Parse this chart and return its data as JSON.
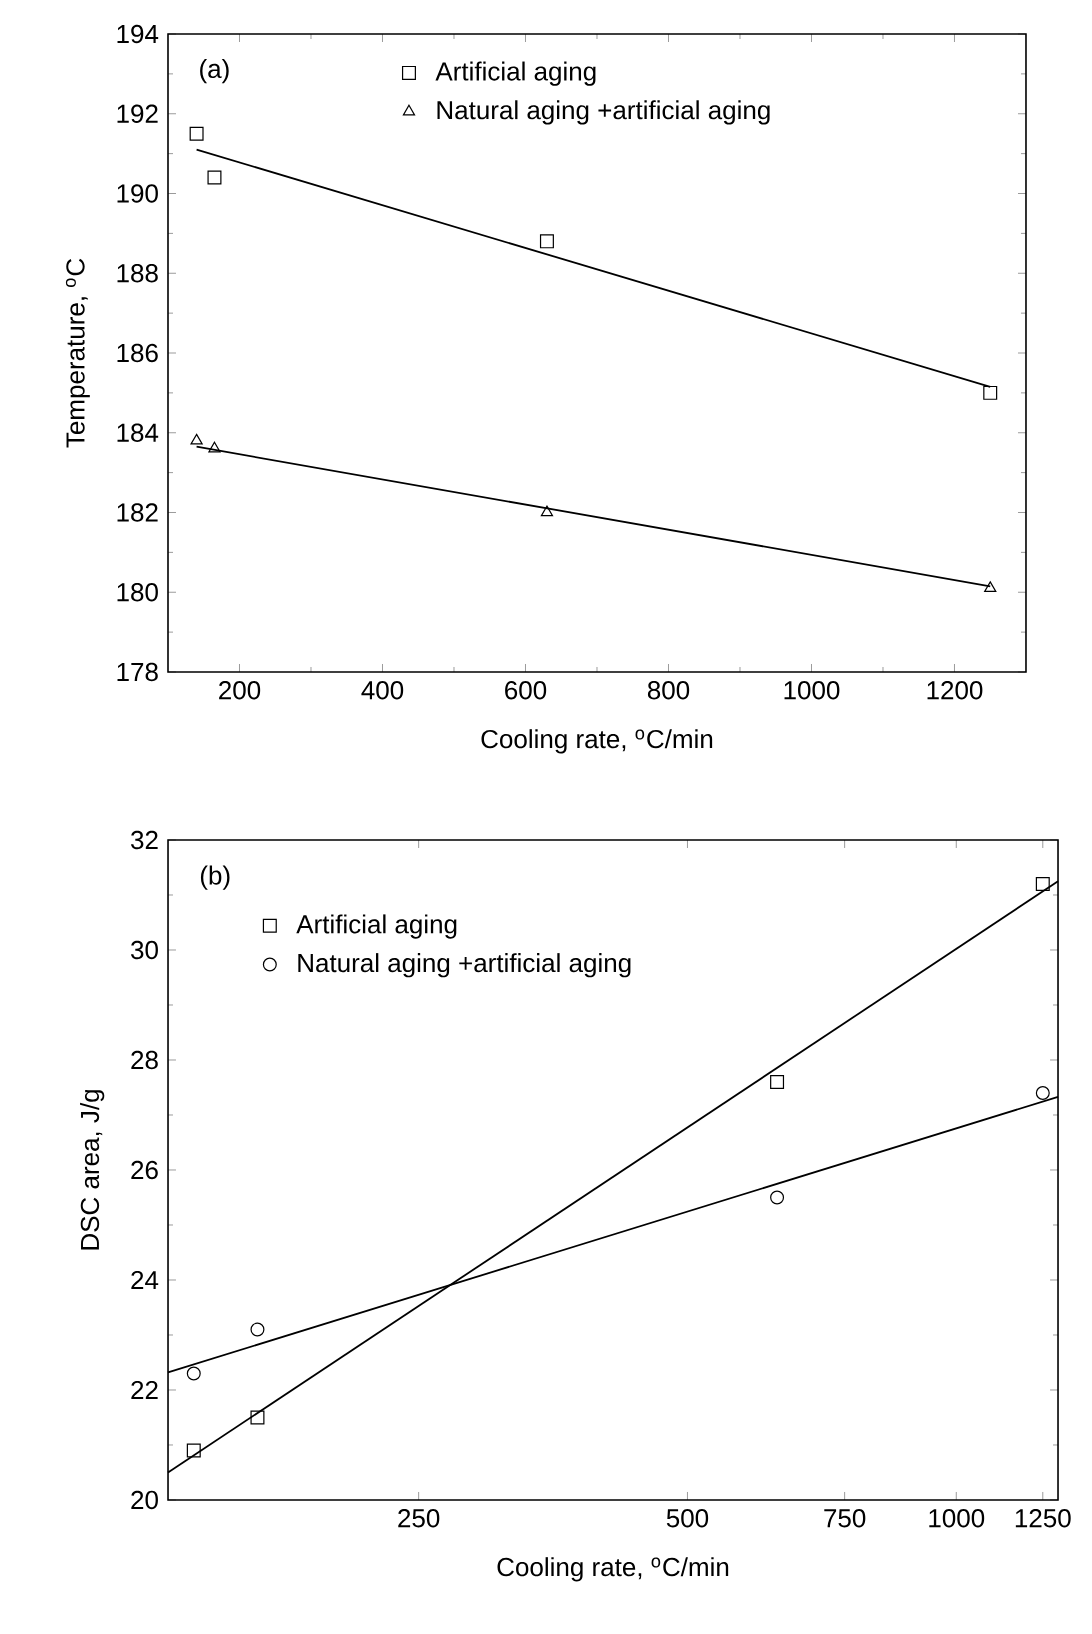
{
  "chart_data": [
    {
      "type": "scatter",
      "xlabel": "Cooling rate, $^{o}$C/min",
      "ylabel": "Temperature, $^{o}$C",
      "annotations": [
        "(a)"
      ],
      "xlim": [
        100,
        1300
      ],
      "xticks": [
        200,
        400,
        600,
        800,
        1000,
        1200
      ],
      "ylim": [
        178,
        194
      ],
      "yticks": [
        178,
        180,
        182,
        184,
        186,
        188,
        190,
        192,
        194
      ],
      "legend": "top",
      "series": [
        {
          "name": "Artificial aging",
          "marker": "square",
          "color": "#000000",
          "x": [
            140,
            165,
            630,
            1250
          ],
          "values": [
            191.5,
            190.4,
            188.8,
            185.0
          ]
        },
        {
          "name": "Natural aging +artificial aging",
          "marker": "triangle",
          "color": "#000000",
          "x": [
            140,
            165,
            630,
            1250
          ],
          "values": [
            183.8,
            183.6,
            182.0,
            180.1
          ]
        },
        {
          "type": "line",
          "color": "#000000",
          "x": [
            140,
            1250
          ],
          "values": [
            191.1,
            185.15
          ]
        },
        {
          "type": "line",
          "color": "#000000",
          "x": [
            140,
            1250
          ],
          "values": [
            183.65,
            180.15
          ]
        }
      ]
    },
    {
      "type": "scatter",
      "xlabel": "Cooling rate, $^{o}$C/min",
      "ylabel": "DSC area, J/g",
      "annotations": [
        "(b)"
      ],
      "log": "x",
      "xlim": [
        131,
        1300
      ],
      "xticks": [
        250,
        500,
        750,
        1000,
        1250
      ],
      "ylim": [
        20,
        32
      ],
      "yticks": [
        20,
        22,
        24,
        26,
        28,
        30,
        32
      ],
      "legend": "top left",
      "series": [
        {
          "name": "Artificial aging",
          "marker": "square",
          "color": "#000000",
          "x": [
            140,
            165,
            630,
            1250
          ],
          "values": [
            20.9,
            21.5,
            27.6,
            31.2
          ]
        },
        {
          "name": "Natural aging +artificial aging",
          "marker": "circle",
          "color": "#000000",
          "x": [
            140,
            165,
            630,
            1250
          ],
          "values": [
            22.3,
            23.1,
            25.5,
            27.4
          ]
        },
        {
          "type": "line",
          "color": "#000000",
          "x": [
            131,
            1300
          ],
          "values": [
            20.5,
            31.25
          ]
        },
        {
          "type": "line",
          "color": "#000000",
          "x": [
            131,
            1300
          ],
          "values": [
            22.32,
            27.33
          ]
        }
      ]
    }
  ]
}
